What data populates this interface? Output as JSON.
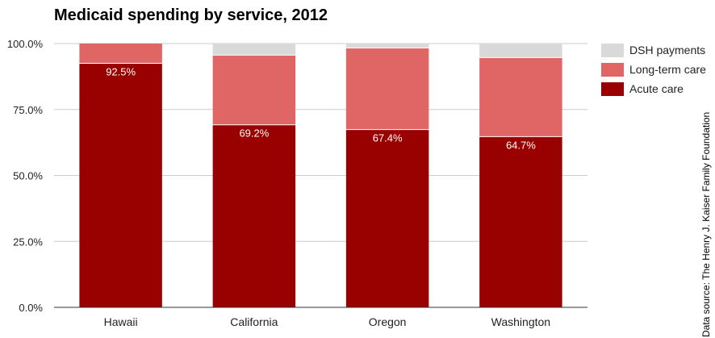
{
  "chart_data": {
    "type": "bar",
    "stacked": true,
    "title": "Medicaid spending by service, 2012",
    "source_note": "Data source: The Henry J. Kaiser Family Foundation",
    "categories": [
      "Hawaii",
      "California",
      "Oregon",
      "Washington"
    ],
    "ylim": [
      0,
      100
    ],
    "yticks": [
      "0.0%",
      "25.0%",
      "50.0%",
      "75.0%",
      "100.0%"
    ],
    "ytick_values": [
      0,
      25,
      50,
      75,
      100
    ],
    "grid": true,
    "legend_position": "right",
    "series": [
      {
        "name": "Acute care",
        "color": "#990000",
        "values": [
          92.5,
          69.2,
          67.4,
          64.7
        ],
        "labels": [
          "92.5%",
          "69.2%",
          "67.4%",
          "64.7%"
        ]
      },
      {
        "name": "Long-term care",
        "color": "#e06666",
        "values": [
          7.5,
          26.4,
          30.9,
          30.0
        ]
      },
      {
        "name": "DSH payments",
        "color": "#d9d9d9",
        "values": [
          0.0,
          4.4,
          1.7,
          5.3
        ]
      }
    ]
  }
}
